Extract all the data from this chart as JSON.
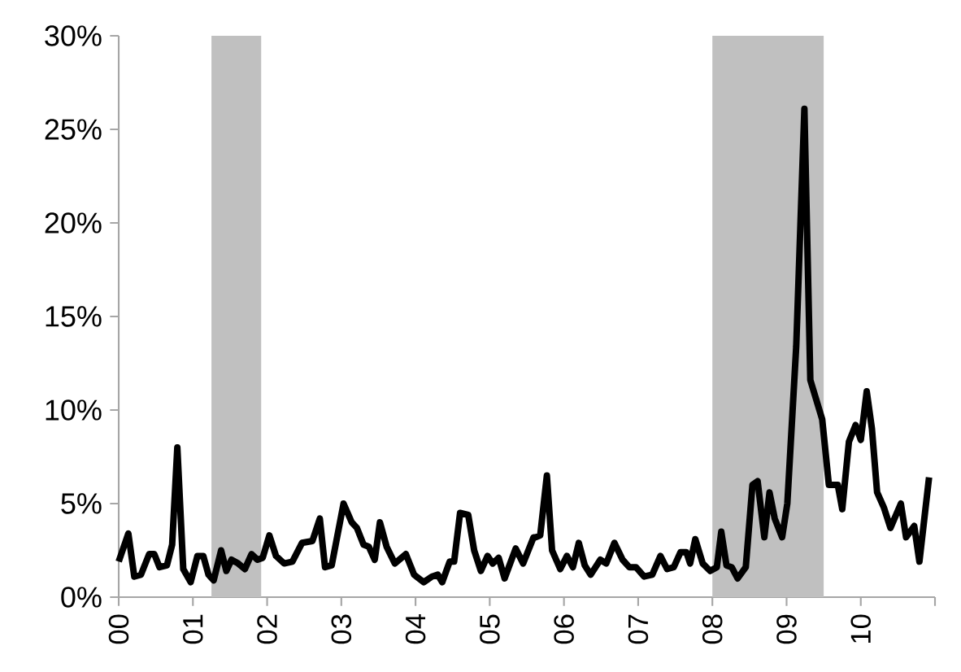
{
  "chart_data": {
    "type": "line",
    "x": [
      2000.0,
      2000.13,
      2000.21,
      2000.3,
      2000.41,
      2000.48,
      2000.55,
      2000.65,
      2000.72,
      2000.79,
      2000.87,
      2000.97,
      2001.06,
      2001.14,
      2001.21,
      2001.28,
      2001.38,
      2001.45,
      2001.52,
      2001.61,
      2001.7,
      2001.79,
      2001.87,
      2001.94,
      2002.03,
      2002.12,
      2002.23,
      2002.34,
      2002.47,
      2002.61,
      2002.71,
      2002.78,
      2002.87,
      2003.03,
      2003.14,
      2003.21,
      2003.3,
      2003.37,
      2003.45,
      2003.52,
      2003.61,
      2003.72,
      2003.87,
      2003.98,
      2004.11,
      2004.22,
      2004.3,
      2004.36,
      2004.46,
      2004.52,
      2004.6,
      2004.71,
      2004.79,
      2004.88,
      2004.97,
      2005.04,
      2005.12,
      2005.2,
      2005.35,
      2005.45,
      2005.59,
      2005.62,
      2005.68,
      2005.77,
      2005.84,
      2005.95,
      2006.04,
      2006.12,
      2006.2,
      2006.28,
      2006.36,
      2006.49,
      2006.57,
      2006.68,
      2006.79,
      2006.88,
      2006.97,
      2007.08,
      2007.19,
      2007.3,
      2007.39,
      2007.48,
      2007.57,
      2007.65,
      2007.7,
      2007.77,
      2007.87,
      2007.97,
      2008.06,
      2008.12,
      2008.19,
      2008.26,
      2008.34,
      2008.45,
      2008.54,
      2008.61,
      2008.7,
      2008.77,
      2008.84,
      2008.94,
      2009.01,
      2009.13,
      2009.24,
      2009.32,
      2009.48,
      2009.57,
      2009.69,
      2009.75,
      2009.84,
      2009.93,
      2010.0,
      2010.08,
      2010.15,
      2010.22,
      2010.31,
      2010.4,
      2010.54,
      2010.61,
      2010.72,
      2010.79,
      2010.92
    ],
    "series": [
      {
        "color": "#000000",
        "values": [
          1.9,
          3.4,
          1.1,
          1.2,
          2.3,
          2.3,
          1.6,
          1.7,
          2.8,
          8.0,
          1.5,
          0.8,
          2.2,
          2.2,
          1.2,
          0.9,
          2.5,
          1.4,
          2.0,
          1.8,
          1.5,
          2.3,
          2.0,
          2.1,
          3.3,
          2.2,
          1.8,
          1.9,
          2.9,
          3.0,
          4.2,
          1.6,
          1.7,
          5.0,
          4.0,
          3.7,
          2.8,
          2.7,
          2.0,
          4.0,
          2.7,
          1.8,
          2.3,
          1.2,
          0.8,
          1.1,
          1.2,
          0.8,
          1.9,
          1.9,
          4.5,
          4.4,
          2.5,
          1.4,
          2.2,
          1.8,
          2.1,
          1.0,
          2.6,
          1.8,
          3.2,
          3.2,
          3.3,
          6.5,
          2.5,
          1.5,
          2.2,
          1.6,
          2.9,
          1.7,
          1.2,
          2.0,
          1.8,
          2.9,
          2.0,
          1.6,
          1.6,
          1.1,
          1.2,
          2.2,
          1.5,
          1.6,
          2.4,
          2.4,
          1.8,
          3.1,
          1.8,
          1.4,
          1.6,
          3.5,
          1.7,
          1.6,
          1.0,
          1.6,
          6.0,
          6.2,
          3.2,
          5.6,
          4.2,
          3.2,
          5.0,
          13.4,
          26.1,
          11.6,
          9.5,
          6.0,
          6.0,
          4.7,
          8.3,
          9.2,
          8.4,
          11.0,
          9.0,
          5.6,
          4.8,
          3.7,
          5.0,
          3.2,
          3.8,
          1.9,
          6.4
        ]
      }
    ],
    "xlim": [
      2000,
      2011
    ],
    "xticks": [
      {
        "value": 2000,
        "label": "00"
      },
      {
        "value": 2001,
        "label": "01"
      },
      {
        "value": 2002,
        "label": "02"
      },
      {
        "value": 2003,
        "label": "03"
      },
      {
        "value": 2004,
        "label": "04"
      },
      {
        "value": 2005,
        "label": "05"
      },
      {
        "value": 2006,
        "label": "06"
      },
      {
        "value": 2007,
        "label": "07"
      },
      {
        "value": 2008,
        "label": "08"
      },
      {
        "value": 2009,
        "label": "09"
      },
      {
        "value": 2010,
        "label": "10"
      },
      {
        "value": 2011,
        "label": null
      }
    ],
    "ylim": [
      0,
      30
    ],
    "yticks": [
      {
        "value": 0,
        "label": "0%"
      },
      {
        "value": 5,
        "label": "5%"
      },
      {
        "value": 10,
        "label": "10%"
      },
      {
        "value": 15,
        "label": "15%"
      },
      {
        "value": 20,
        "label": "20%"
      },
      {
        "value": 25,
        "label": "25%"
      },
      {
        "value": 30,
        "label": "30%"
      }
    ],
    "bands": [
      {
        "axis": "x",
        "from": 2001.25,
        "to": 2001.92,
        "color": "#c0c0c0"
      },
      {
        "axis": "x",
        "from": 2008.0,
        "to": 2009.5,
        "color": "#c0c0c0"
      }
    ],
    "line_style": "solid"
  }
}
